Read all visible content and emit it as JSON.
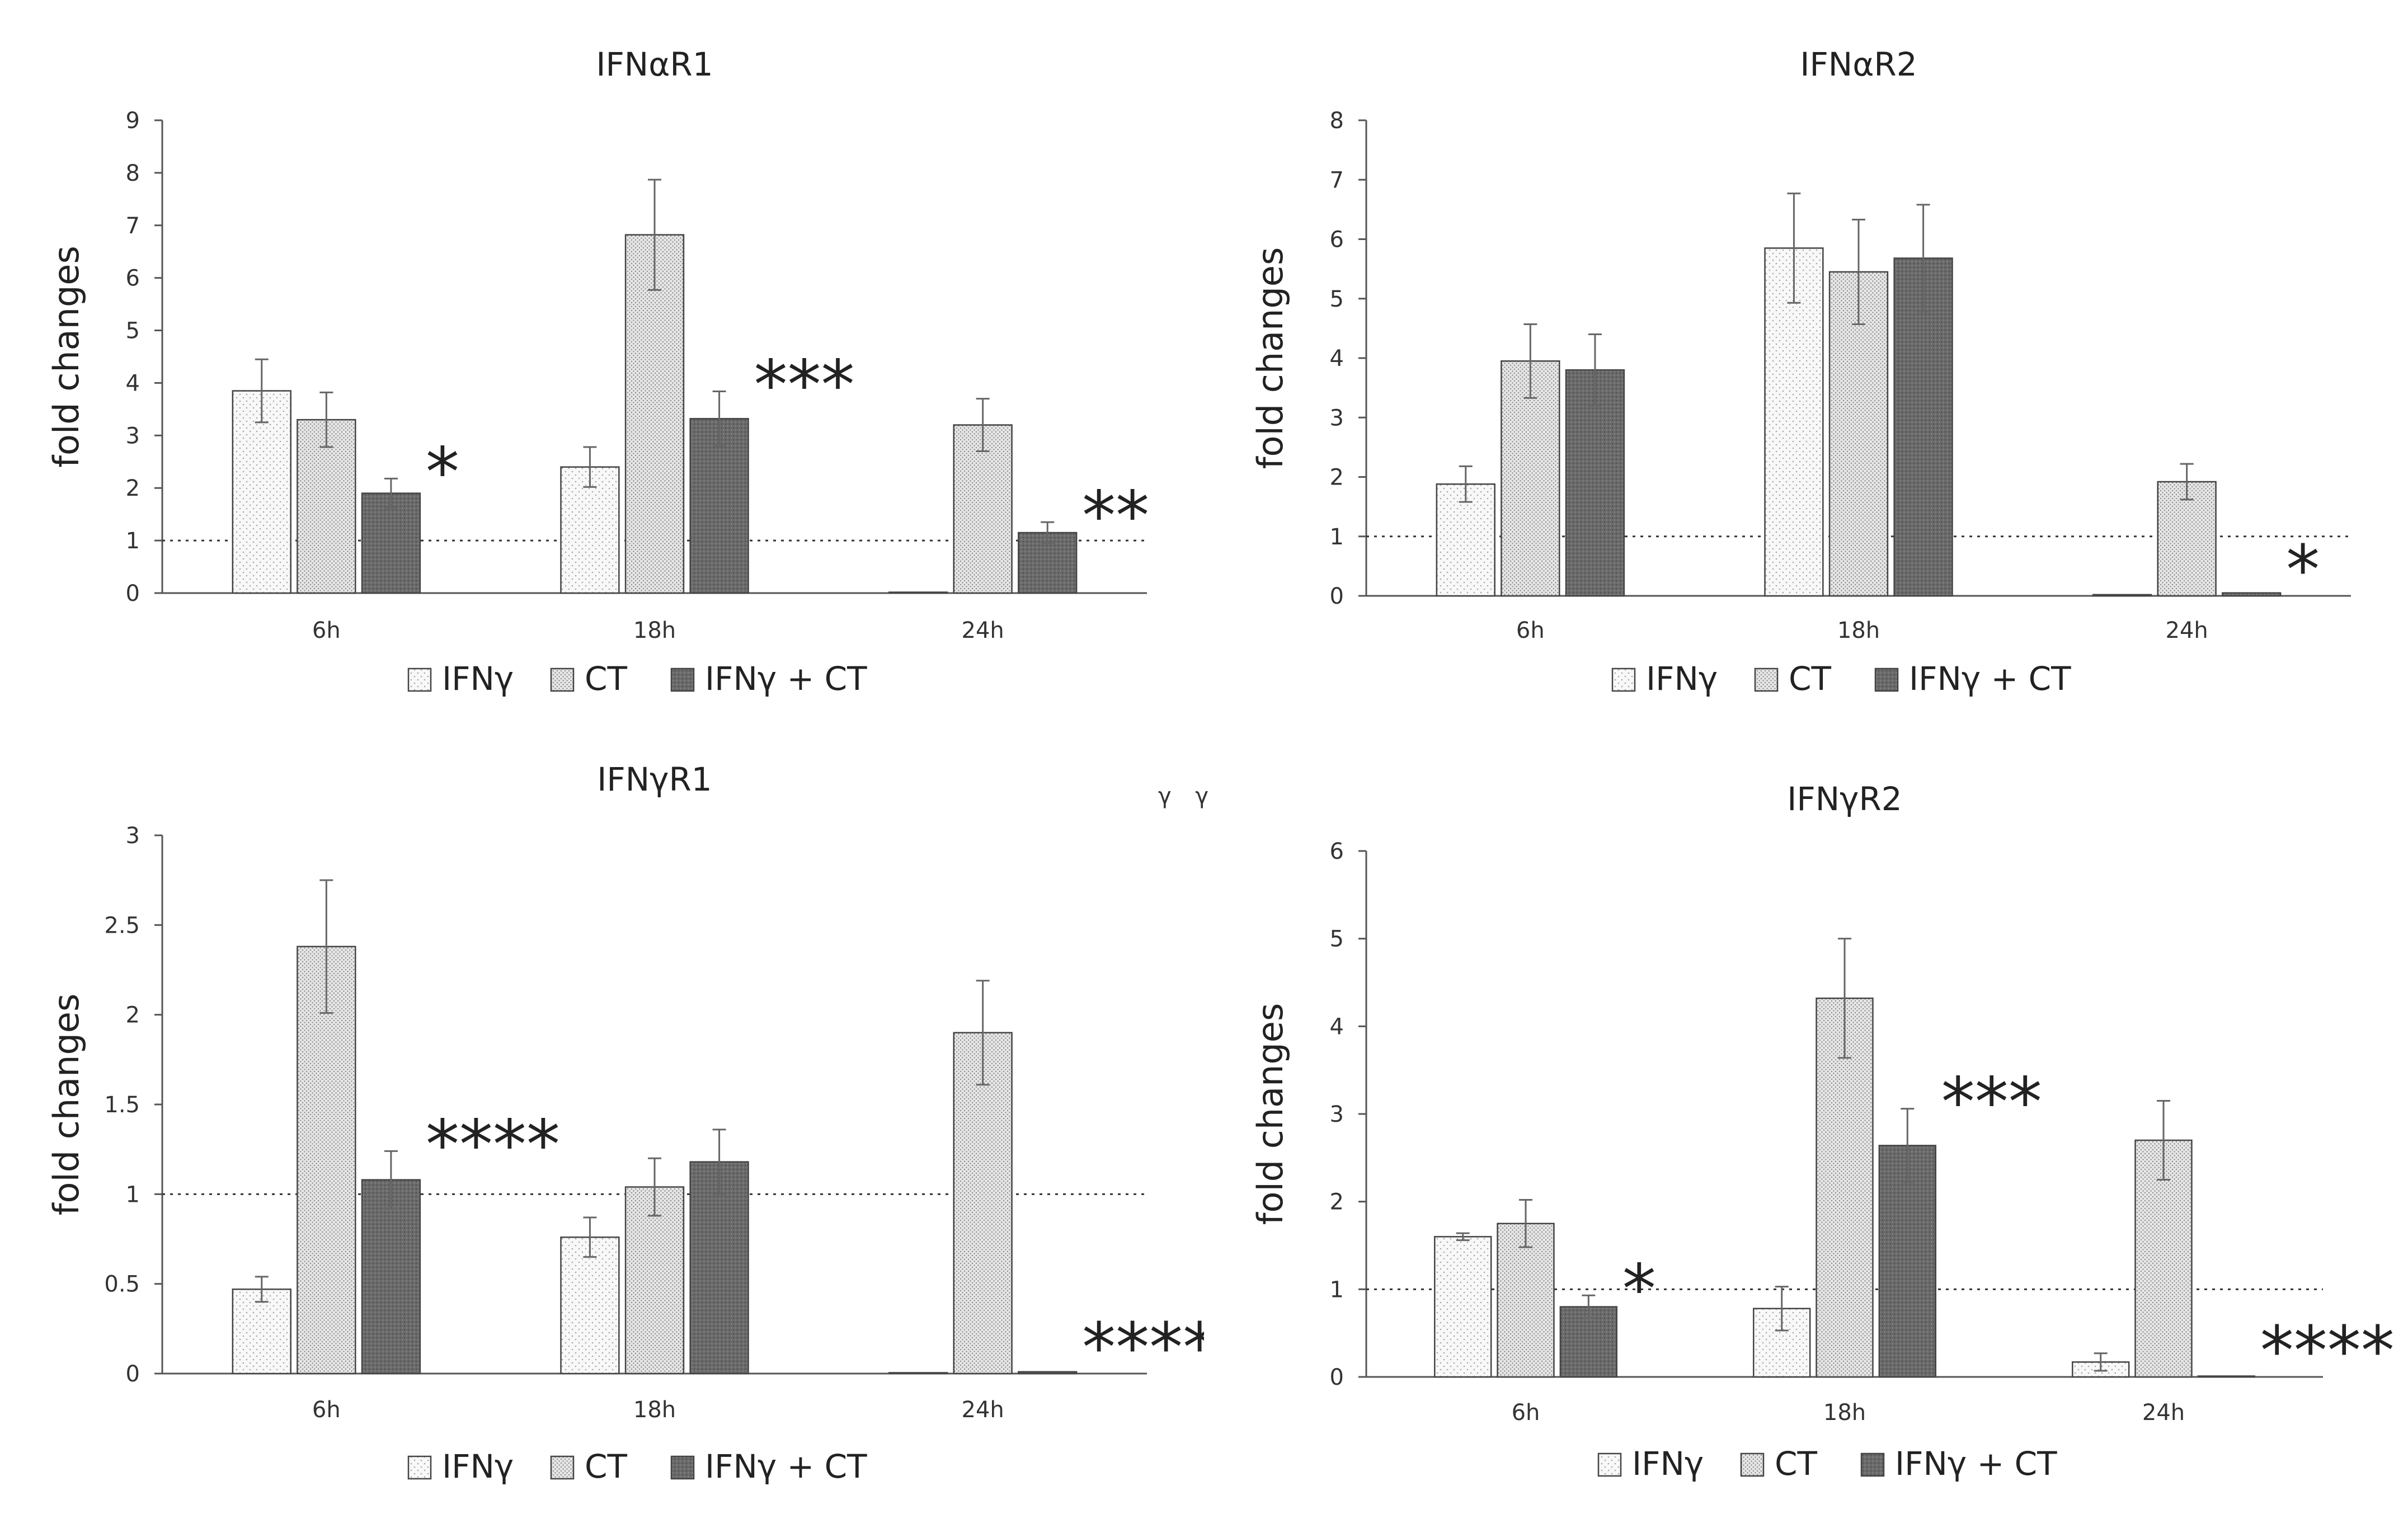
{
  "chart_data": [
    {
      "type": "bar",
      "title": "IFNαR1",
      "ylabel": "fold changes",
      "xlabel": "",
      "ylim": [
        0,
        9
      ],
      "yticks": [
        "0",
        "1",
        "2",
        "3",
        "4",
        "5",
        "6",
        "7",
        "8",
        "9"
      ],
      "categories": [
        "6h",
        "18h",
        "24h"
      ],
      "reference_line": 1,
      "series": [
        {
          "name": "IFNγ",
          "values": [
            3.85,
            2.4,
            0.0
          ],
          "errors": [
            0.6,
            0.38,
            0
          ]
        },
        {
          "name": "CT",
          "values": [
            3.3,
            6.82,
            3.2
          ],
          "errors": [
            0.52,
            1.05,
            0.5
          ]
        },
        {
          "name": "IFNγ + CT",
          "values": [
            1.9,
            3.32,
            1.15
          ],
          "errors": [
            0.28,
            0.52,
            0.2
          ]
        }
      ],
      "significance": [
        "*",
        "***",
        "**"
      ],
      "legend": "bottom",
      "grid": false
    },
    {
      "type": "bar",
      "title": "IFNαR2",
      "ylabel": "fold changes",
      "xlabel": "",
      "ylim": [
        0,
        8
      ],
      "yticks": [
        "0",
        "1",
        "2",
        "3",
        "4",
        "5",
        "6",
        "7",
        "8"
      ],
      "categories": [
        "6h",
        "18h",
        "24h"
      ],
      "reference_line": 1,
      "series": [
        {
          "name": "IFNγ",
          "values": [
            1.88,
            5.85,
            0.02
          ],
          "errors": [
            0.3,
            0.92,
            0
          ]
        },
        {
          "name": "CT",
          "values": [
            3.95,
            5.45,
            1.92
          ],
          "errors": [
            0.62,
            0.88,
            0.3
          ]
        },
        {
          "name": "IFNγ + CT",
          "values": [
            3.8,
            5.68,
            0.05
          ],
          "errors": [
            0.6,
            0.9,
            0
          ]
        }
      ],
      "significance": [
        "",
        "",
        "*"
      ],
      "legend": "bottom",
      "grid": false
    },
    {
      "type": "bar",
      "title": "IFNγR1",
      "ylabel": "fold changes",
      "xlabel": "",
      "ylim": [
        0,
        3
      ],
      "yticks": [
        "0",
        "0.5",
        "1",
        "1.5",
        "2",
        "2.5",
        "3"
      ],
      "categories": [
        "6h",
        "18h",
        "24h"
      ],
      "reference_line": 1,
      "series": [
        {
          "name": "IFNγ",
          "values": [
            0.47,
            0.76,
            0.0
          ],
          "errors": [
            0.07,
            0.11,
            0
          ]
        },
        {
          "name": "CT",
          "values": [
            2.38,
            1.04,
            1.9
          ],
          "errors": [
            0.37,
            0.16,
            0.29
          ]
        },
        {
          "name": "IFNγ + CT",
          "values": [
            1.08,
            1.18,
            0.01
          ],
          "errors": [
            0.16,
            0.18,
            0
          ]
        }
      ],
      "significance": [
        "****",
        "",
        "*****"
      ],
      "legend": "bottom",
      "grid": false
    },
    {
      "type": "bar",
      "title": "IFNγR2",
      "ylabel": "fold changes",
      "xlabel": "",
      "ylim": [
        0,
        6
      ],
      "yticks": [
        "0",
        "1",
        "2",
        "3",
        "4",
        "5",
        "6"
      ],
      "categories": [
        "6h",
        "18h",
        "24h"
      ],
      "reference_line": 1,
      "series": [
        {
          "name": "IFNγ",
          "values": [
            1.6,
            0.78,
            0.17
          ],
          "errors": [
            0.04,
            0.25,
            0.1
          ]
        },
        {
          "name": "CT",
          "values": [
            1.75,
            4.32,
            2.7
          ],
          "errors": [
            0.27,
            0.68,
            0.45
          ]
        },
        {
          "name": "IFNγ + CT",
          "values": [
            0.8,
            2.64,
            0.0
          ],
          "errors": [
            0.13,
            0.42,
            0
          ]
        }
      ],
      "significance": [
        "*",
        "***",
        "****"
      ],
      "legend": "bottom",
      "grid": false
    }
  ],
  "stray_glyphs": [
    "γ",
    "γ"
  ],
  "colors": {
    "ifng_fill": "#f7f7f7",
    "ct_fill": "#dedede",
    "combo_fill": "#6e6e6e",
    "bar_outline": "#444444",
    "axis": "#333333",
    "errorbar": "#555555"
  }
}
